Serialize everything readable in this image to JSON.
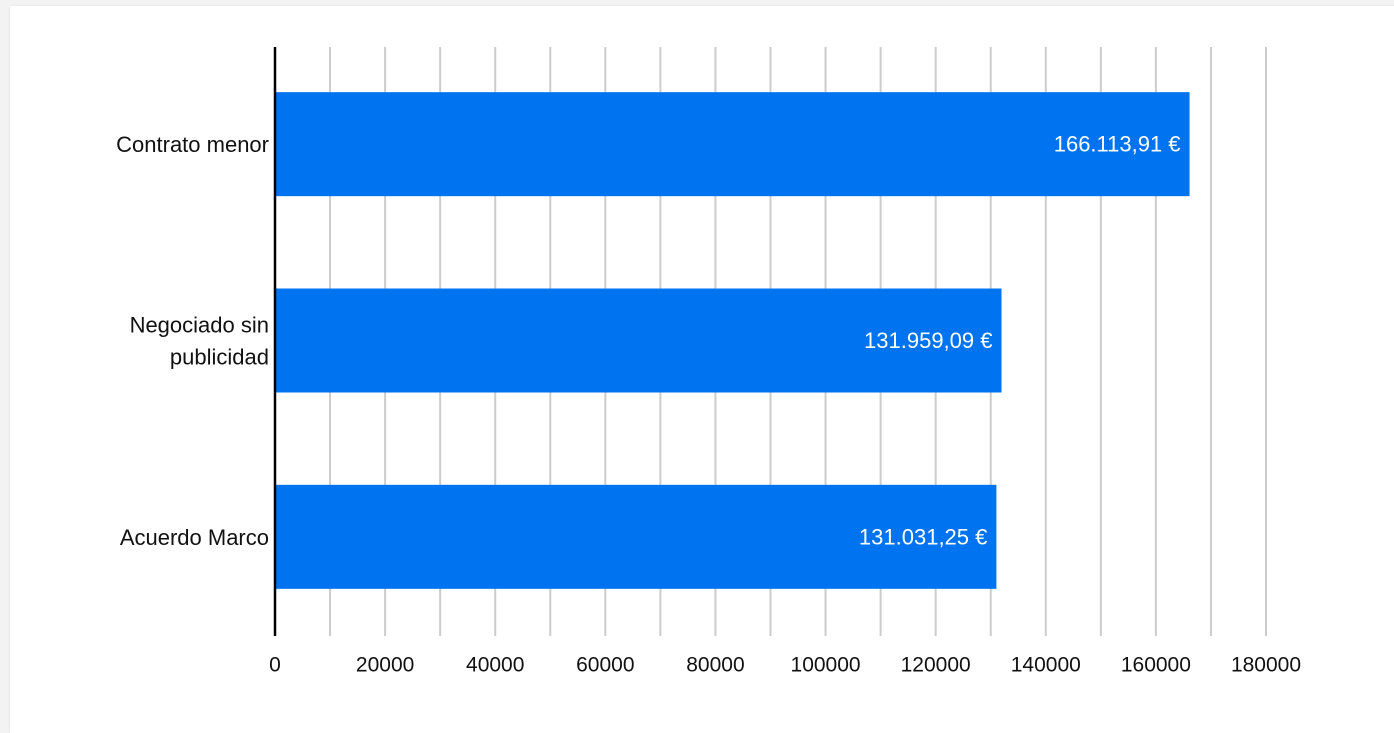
{
  "chart_data": {
    "type": "bar",
    "orientation": "horizontal",
    "title": "",
    "xlabel": "",
    "ylabel": "",
    "categories": [
      "Contrato menor",
      "Negociado sin publicidad",
      "Acuerdo Marco"
    ],
    "category_label_lines": [
      [
        "Contrato menor"
      ],
      [
        "Negociado sin",
        "publicidad"
      ],
      [
        "Acuerdo Marco"
      ]
    ],
    "values": [
      166113.91,
      131959.09,
      131031.25
    ],
    "data_labels": [
      "166.113,91 €",
      "131.959,09 €",
      "131.031,25 €"
    ],
    "xlim": [
      0,
      180000
    ],
    "x_ticks": [
      "0",
      "20000",
      "40000",
      "60000",
      "80000",
      "100000",
      "120000",
      "140000",
      "160000",
      "180000"
    ],
    "grid": true,
    "legend": "none",
    "colors": {
      "bar": "#0073f0",
      "grid": "#cccccc",
      "axis": "#000000",
      "data_label": "#ffffff"
    }
  }
}
